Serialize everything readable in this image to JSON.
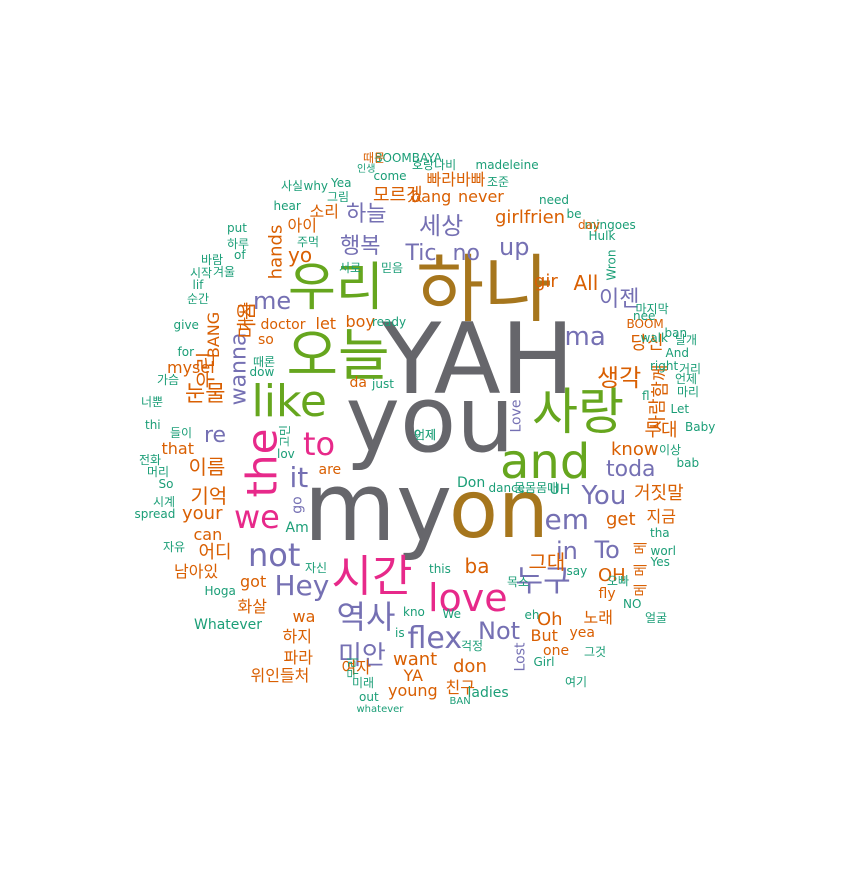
{
  "palette": {
    "gray": "#66666b",
    "olive": "#a6761d",
    "green": "#66a61e",
    "magenta": "#e7298a",
    "purple": "#7570b3",
    "orange": "#d95f02",
    "teal": "#1b9e77"
  },
  "words": [
    {
      "text": "YAH",
      "color": "gray"
    },
    {
      "text": "you",
      "color": "gray"
    },
    {
      "text": "my",
      "color": "gray"
    },
    {
      "text": "on",
      "color": "olive"
    },
    {
      "text": "하나",
      "color": "olive"
    },
    {
      "text": "우리",
      "color": "green"
    },
    {
      "text": "오늘",
      "color": "green"
    },
    {
      "text": "사랑",
      "color": "green"
    },
    {
      "text": "and",
      "color": "green"
    },
    {
      "text": "like",
      "color": "green"
    },
    {
      "text": "the",
      "color": "magenta"
    },
    {
      "text": "to",
      "color": "magenta"
    },
    {
      "text": "we",
      "color": "magenta"
    },
    {
      "text": "시간",
      "color": "magenta"
    },
    {
      "text": "love",
      "color": "magenta"
    },
    {
      "text": "not",
      "color": "purple"
    },
    {
      "text": "it",
      "color": "purple"
    },
    {
      "text": "역사",
      "color": "purple"
    },
    {
      "text": "flex",
      "color": "purple"
    },
    {
      "text": "미안",
      "color": "purple"
    },
    {
      "text": "Hey",
      "color": "purple"
    },
    {
      "text": "누구",
      "color": "purple"
    },
    {
      "text": "em",
      "color": "purple"
    },
    {
      "text": "You",
      "color": "purple"
    },
    {
      "text": "in",
      "color": "purple"
    },
    {
      "text": "To",
      "color": "purple"
    },
    {
      "text": "Not",
      "color": "purple"
    },
    {
      "text": "toda",
      "color": "purple"
    },
    {
      "text": "ma",
      "color": "purple"
    },
    {
      "text": "up",
      "color": "purple"
    },
    {
      "text": "re",
      "color": "purple"
    },
    {
      "text": "me",
      "color": "purple"
    },
    {
      "text": "wanna",
      "color": "purple"
    },
    {
      "text": "생각",
      "color": "orange"
    },
    {
      "text": "이젠",
      "color": "purple"
    },
    {
      "text": "세상",
      "color": "purple"
    },
    {
      "text": "행복",
      "color": "purple"
    },
    {
      "text": "하늘",
      "color": "purple"
    },
    {
      "text": "Tic",
      "color": "purple"
    },
    {
      "text": "no",
      "color": "purple"
    },
    {
      "text": "마음",
      "color": "orange"
    },
    {
      "text": "눈물",
      "color": "orange"
    },
    {
      "text": "우린",
      "color": "orange"
    },
    {
      "text": "이름",
      "color": "orange"
    },
    {
      "text": "기억",
      "color": "orange"
    },
    {
      "text": "어디",
      "color": "orange"
    },
    {
      "text": "your",
      "color": "orange"
    },
    {
      "text": "yo",
      "color": "orange"
    },
    {
      "text": "hands",
      "color": "orange"
    },
    {
      "text": "아이",
      "color": "orange"
    },
    {
      "text": "소리",
      "color": "orange"
    },
    {
      "text": "All",
      "color": "orange"
    },
    {
      "text": "gir",
      "color": "orange"
    },
    {
      "text": "girlfrien",
      "color": "orange"
    },
    {
      "text": "모르겠",
      "color": "orange"
    },
    {
      "text": "빠라바빠",
      "color": "orange"
    },
    {
      "text": "bang",
      "color": "orange"
    },
    {
      "text": "never",
      "color": "orange"
    },
    {
      "text": "당신",
      "color": "orange"
    },
    {
      "text": "함께",
      "color": "orange"
    },
    {
      "text": "사람",
      "color": "orange"
    },
    {
      "text": "무대",
      "color": "orange"
    },
    {
      "text": "know",
      "color": "orange"
    },
    {
      "text": "거짓말",
      "color": "orange"
    },
    {
      "text": "get",
      "color": "orange"
    },
    {
      "text": "지금",
      "color": "orange"
    },
    {
      "text": "그대",
      "color": "orange"
    },
    {
      "text": "ba",
      "color": "orange"
    },
    {
      "text": "OH",
      "color": "orange"
    },
    {
      "text": "Oh",
      "color": "orange"
    },
    {
      "text": "노래",
      "color": "orange"
    },
    {
      "text": "want",
      "color": "orange"
    },
    {
      "text": "don",
      "color": "orange"
    },
    {
      "text": "But",
      "color": "orange"
    },
    {
      "text": "친구",
      "color": "orange"
    },
    {
      "text": "YA",
      "color": "orange"
    },
    {
      "text": "young",
      "color": "orange"
    },
    {
      "text": "여자",
      "color": "orange"
    },
    {
      "text": "파라",
      "color": "orange"
    },
    {
      "text": "하지",
      "color": "orange"
    },
    {
      "text": "wa",
      "color": "orange"
    },
    {
      "text": "화살",
      "color": "orange"
    },
    {
      "text": "got",
      "color": "orange"
    },
    {
      "text": "남아있",
      "color": "orange"
    },
    {
      "text": "can",
      "color": "orange"
    },
    {
      "text": "위인들처",
      "color": "orange"
    },
    {
      "text": "let",
      "color": "orange"
    },
    {
      "text": "boy",
      "color": "orange"
    },
    {
      "text": "doctor",
      "color": "orange"
    },
    {
      "text": "da",
      "color": "orange"
    },
    {
      "text": "so",
      "color": "orange"
    },
    {
      "text": "mysel",
      "color": "orange"
    },
    {
      "text": "that",
      "color": "orange"
    },
    {
      "text": "are",
      "color": "orange"
    },
    {
      "text": "BANG",
      "color": "orange"
    },
    {
      "text": "가사",
      "color": "orange"
    },
    {
      "text": "go",
      "color": "purple"
    },
    {
      "text": "Lost",
      "color": "purple"
    },
    {
      "text": "Love",
      "color": "purple"
    },
    {
      "text": "Don",
      "color": "teal"
    },
    {
      "text": "UH",
      "color": "teal"
    },
    {
      "text": "Am",
      "color": "teal"
    },
    {
      "text": "Whatever",
      "color": "teal"
    },
    {
      "text": "ladies",
      "color": "teal"
    },
    {
      "text": "yea",
      "color": "orange"
    },
    {
      "text": "fly",
      "color": "orange"
    },
    {
      "text": "one",
      "color": "orange"
    },
    {
      "text": "메",
      "color": "orange"
    },
    {
      "text": "메",
      "color": "orange"
    },
    {
      "text": "메",
      "color": "orange"
    },
    {
      "text": "얼굴",
      "color": "teal"
    },
    {
      "text": "NO",
      "color": "teal"
    },
    {
      "text": "오빠",
      "color": "teal"
    },
    {
      "text": "tha",
      "color": "teal"
    },
    {
      "text": "worl",
      "color": "teal"
    },
    {
      "text": "Yes",
      "color": "teal"
    },
    {
      "text": "이상",
      "color": "teal"
    },
    {
      "text": "bab",
      "color": "teal"
    },
    {
      "text": "Baby",
      "color": "teal"
    },
    {
      "text": "Let",
      "color": "teal"
    },
    {
      "text": "fl",
      "color": "teal"
    },
    {
      "text": "언제",
      "color": "teal"
    },
    {
      "text": "마리",
      "color": "teal"
    },
    {
      "text": "거리",
      "color": "teal"
    },
    {
      "text": "And",
      "color": "teal"
    },
    {
      "text": "right",
      "color": "teal"
    },
    {
      "text": "walk",
      "color": "teal"
    },
    {
      "text": "BOOM",
      "color": "orange"
    },
    {
      "text": "날개",
      "color": "teal"
    },
    {
      "text": "마지막",
      "color": "teal"
    },
    {
      "text": "nee",
      "color": "teal"
    },
    {
      "text": "mingoes",
      "color": "teal"
    },
    {
      "text": "Wron",
      "color": "teal"
    },
    {
      "text": "Hulk",
      "color": "teal"
    },
    {
      "text": "day",
      "color": "orange"
    },
    {
      "text": "be",
      "color": "teal"
    },
    {
      "text": "need",
      "color": "teal"
    },
    {
      "text": "조준",
      "color": "teal"
    },
    {
      "text": "madeleine",
      "color": "teal"
    },
    {
      "text": "호랑나비",
      "color": "teal"
    },
    {
      "text": "BOOMBAYA",
      "color": "teal"
    },
    {
      "text": "때문",
      "color": "orange"
    },
    {
      "text": "인생",
      "color": "teal"
    },
    {
      "text": "come",
      "color": "teal"
    },
    {
      "text": "Yea",
      "color": "teal"
    },
    {
      "text": "why",
      "color": "teal"
    },
    {
      "text": "사실",
      "color": "teal"
    },
    {
      "text": "hear",
      "color": "teal"
    },
    {
      "text": "그림",
      "color": "teal"
    },
    {
      "text": "put",
      "color": "teal"
    },
    {
      "text": "하루",
      "color": "teal"
    },
    {
      "text": "주먹",
      "color": "teal"
    },
    {
      "text": "믿음",
      "color": "teal"
    },
    {
      "text": "서로",
      "color": "teal"
    },
    {
      "text": "바람",
      "color": "teal"
    },
    {
      "text": "of",
      "color": "teal"
    },
    {
      "text": "시작",
      "color": "teal"
    },
    {
      "text": "겨울",
      "color": "teal"
    },
    {
      "text": "lif",
      "color": "teal"
    },
    {
      "text": "순간",
      "color": "teal"
    },
    {
      "text": "ready",
      "color": "teal"
    },
    {
      "text": "give",
      "color": "teal"
    },
    {
      "text": "for",
      "color": "teal"
    },
    {
      "text": "때론",
      "color": "teal"
    },
    {
      "text": "dow",
      "color": "teal"
    },
    {
      "text": "가슴",
      "color": "teal"
    },
    {
      "text": "just",
      "color": "teal"
    },
    {
      "text": "너뿐",
      "color": "teal"
    },
    {
      "text": "thi",
      "color": "teal"
    },
    {
      "text": "들이",
      "color": "teal"
    },
    {
      "text": "고민",
      "color": "teal"
    },
    {
      "text": "전화",
      "color": "teal"
    },
    {
      "text": "lov",
      "color": "teal"
    },
    {
      "text": "머리",
      "color": "teal"
    },
    {
      "text": "So",
      "color": "teal"
    },
    {
      "text": "시계",
      "color": "teal"
    },
    {
      "text": "spread",
      "color": "teal"
    },
    {
      "text": "자유",
      "color": "teal"
    },
    {
      "text": "자신",
      "color": "teal"
    },
    {
      "text": "Hoga",
      "color": "teal"
    },
    {
      "text": "this",
      "color": "teal"
    },
    {
      "text": "kno",
      "color": "teal"
    },
    {
      "text": "목소",
      "color": "teal"
    },
    {
      "text": "say",
      "color": "teal"
    },
    {
      "text": "eh",
      "color": "teal"
    },
    {
      "text": "We",
      "color": "teal"
    },
    {
      "text": "is",
      "color": "teal"
    },
    {
      "text": "걱정",
      "color": "teal"
    },
    {
      "text": "Girl",
      "color": "teal"
    },
    {
      "text": "여기",
      "color": "teal"
    },
    {
      "text": "무리",
      "color": "teal"
    },
    {
      "text": "미래",
      "color": "teal"
    },
    {
      "text": "out",
      "color": "teal"
    },
    {
      "text": "BAN",
      "color": "teal"
    },
    {
      "text": "whatever",
      "color": "teal"
    },
    {
      "text": "dance",
      "color": "teal"
    },
    {
      "text": "몸몸몸매",
      "color": "teal"
    },
    {
      "text": "그것",
      "color": "teal"
    },
    {
      "text": "ban",
      "color": "teal"
    },
    {
      "text": "언제",
      "color": "teal"
    },
    {
      "text": "이제",
      "color": "teal"
    }
  ]
}
